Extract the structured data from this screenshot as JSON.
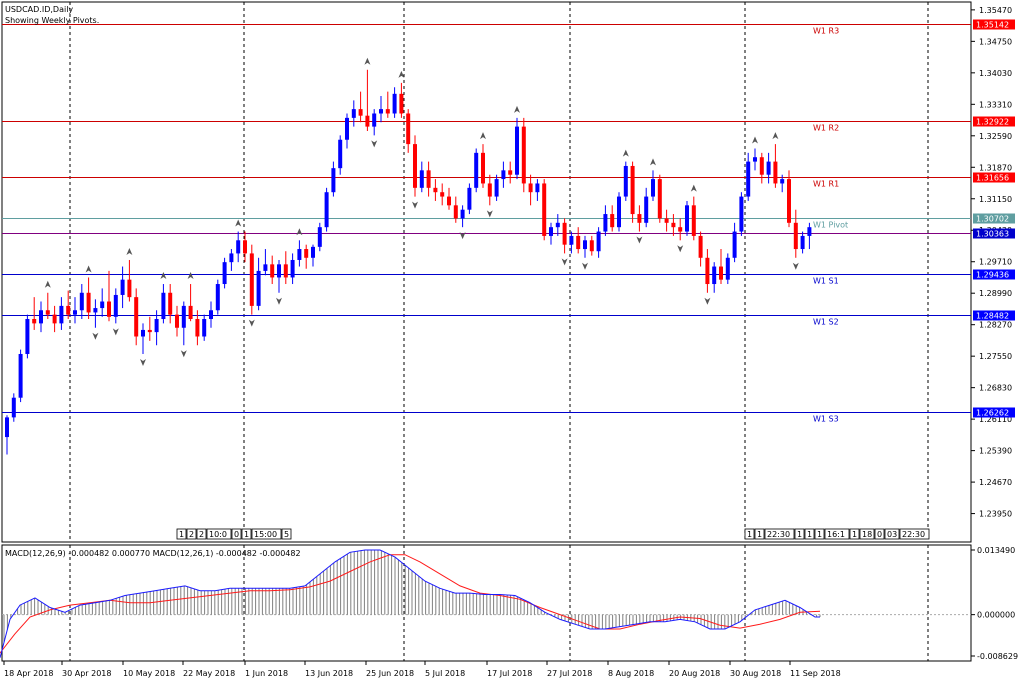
{
  "header": {
    "symbol_line": "USDCAD.ID,Daily",
    "subtitle": "Showing Weekly Pivots."
  },
  "macd": {
    "label": "MACD(12,26,9) -0.000482 0.000770 MACD(12,26,1) -0.000482 -0.000482",
    "ticks": [
      "0.013490",
      "0.000000",
      "-0.008629"
    ],
    "colors": {
      "macd_line": "#1a1aff",
      "signal_line": "#ff1a1a",
      "histogram": "#7f7f7f"
    }
  },
  "badges_left": [
    "1",
    "2",
    "2",
    "10:0",
    "0",
    "1",
    "15:00",
    "5"
  ],
  "badges_right": [
    "1",
    "1",
    "22:30",
    "1",
    "1",
    "1",
    "16:1",
    "1",
    "18",
    "0",
    "03",
    "22:30"
  ],
  "chart_data": {
    "type": "candlestick",
    "title": "USDCAD.ID,Daily",
    "subtitle": "Showing Weekly Pivots.",
    "ylim": [
      1.233,
      1.3565
    ],
    "y_ticks": [
      "1.35470",
      "1.34750",
      "1.34030",
      "1.33310",
      "1.32590",
      "1.31870",
      "1.31150",
      "1.30430",
      "1.29710",
      "1.28990",
      "1.28270",
      "1.27550",
      "1.26830",
      "1.26110",
      "1.25390",
      "1.24670",
      "1.23950"
    ],
    "x_ticks": [
      "18 Apr 2018",
      "30 Apr 2018",
      "10 May 2018",
      "22 May 2018",
      "1 Jun 2018",
      "13 Jun 2018",
      "25 Jun 2018",
      "5 Jul 2018",
      "17 Jul 2018",
      "27 Jul 2018",
      "8 Aug 2018",
      "20 Aug 2018",
      "30 Aug 2018",
      "11 Sep 2018"
    ],
    "colors": {
      "up": "#0000ff",
      "down": "#ff0000",
      "resistance": "#cc0000",
      "support": "#0000cc",
      "pivot": "#5f9ea0"
    },
    "pivots": [
      {
        "name": "W1 R3",
        "value": "1.35142",
        "type": "resistance"
      },
      {
        "name": "W1 R2",
        "value": "1.32922",
        "type": "resistance"
      },
      {
        "name": "W1 R1",
        "value": "1.31656",
        "type": "resistance"
      },
      {
        "name": "W1 Pivot",
        "value": "1.30702",
        "type": "pivot"
      },
      {
        "name": "",
        "value": "1.30363",
        "type": "current"
      },
      {
        "name": "W1 S1",
        "value": "1.29436",
        "type": "support"
      },
      {
        "name": "W1 S2",
        "value": "1.28482",
        "type": "support"
      },
      {
        "name": "W1 S3",
        "value": "1.26262",
        "type": "support"
      }
    ],
    "candles": [
      [
        1.257,
        1.262,
        1.253,
        1.2615
      ],
      [
        1.2615,
        1.267,
        1.2605,
        1.266
      ],
      [
        1.266,
        1.277,
        1.265,
        1.276
      ],
      [
        1.276,
        1.285,
        1.275,
        1.284
      ],
      [
        1.284,
        1.289,
        1.2815,
        1.283
      ],
      [
        1.283,
        1.288,
        1.281,
        1.286
      ],
      [
        1.286,
        1.29,
        1.284,
        1.285
      ],
      [
        1.285,
        1.287,
        1.281,
        1.283
      ],
      [
        1.283,
        1.289,
        1.2815,
        1.287
      ],
      [
        1.287,
        1.2905,
        1.284,
        1.285
      ],
      [
        1.285,
        1.289,
        1.283,
        1.286
      ],
      [
        1.286,
        1.292,
        1.284,
        1.29
      ],
      [
        1.29,
        1.2935,
        1.284,
        1.2855
      ],
      [
        1.2855,
        1.2885,
        1.282,
        1.2865
      ],
      [
        1.2865,
        1.291,
        1.2845,
        1.288
      ],
      [
        1.288,
        1.295,
        1.2835,
        1.2845
      ],
      [
        1.2845,
        1.291,
        1.283,
        1.2895
      ],
      [
        1.2895,
        1.296,
        1.2865,
        1.293
      ],
      [
        1.293,
        1.2975,
        1.288,
        1.289
      ],
      [
        1.289,
        1.291,
        1.278,
        1.28
      ],
      [
        1.28,
        1.283,
        1.276,
        1.2815
      ],
      [
        1.2815,
        1.2845,
        1.279,
        1.281
      ],
      [
        1.281,
        1.286,
        1.278,
        1.284
      ],
      [
        1.284,
        1.292,
        1.283,
        1.29
      ],
      [
        1.29,
        1.292,
        1.283,
        1.285
      ],
      [
        1.285,
        1.287,
        1.28,
        1.282
      ],
      [
        1.282,
        1.288,
        1.278,
        1.287
      ],
      [
        1.287,
        1.292,
        1.2835,
        1.284
      ],
      [
        1.284,
        1.286,
        1.278,
        1.28
      ],
      [
        1.28,
        1.285,
        1.279,
        1.284
      ],
      [
        1.284,
        1.288,
        1.282,
        1.286
      ],
      [
        1.286,
        1.293,
        1.285,
        1.292
      ],
      [
        1.292,
        1.298,
        1.291,
        1.297
      ],
      [
        1.297,
        1.3,
        1.295,
        1.299
      ],
      [
        1.299,
        1.304,
        1.297,
        1.302
      ],
      [
        1.302,
        1.304,
        1.297,
        1.299
      ],
      [
        1.299,
        1.301,
        1.285,
        1.287
      ],
      [
        1.287,
        1.298,
        1.286,
        1.295
      ],
      [
        1.295,
        1.3,
        1.294,
        1.2965
      ],
      [
        1.2965,
        1.2985,
        1.292,
        1.2935
      ],
      [
        1.2935,
        1.2975,
        1.29,
        1.2965
      ],
      [
        1.2965,
        1.2995,
        1.292,
        1.2935
      ],
      [
        1.2935,
        1.299,
        1.292,
        1.2975
      ],
      [
        1.2975,
        1.302,
        1.296,
        1.3
      ],
      [
        1.3,
        1.301,
        1.2955,
        1.298
      ],
      [
        1.298,
        1.301,
        1.296,
        1.3005
      ],
      [
        1.3005,
        1.306,
        1.2995,
        1.305
      ],
      [
        1.305,
        1.314,
        1.304,
        1.313
      ],
      [
        1.313,
        1.32,
        1.312,
        1.3185
      ],
      [
        1.3185,
        1.326,
        1.317,
        1.325
      ],
      [
        1.325,
        1.331,
        1.323,
        1.33
      ],
      [
        1.33,
        1.334,
        1.328,
        1.332
      ],
      [
        1.332,
        1.336,
        1.329,
        1.3305
      ],
      [
        1.3305,
        1.341,
        1.327,
        1.328
      ],
      [
        1.328,
        1.332,
        1.326,
        1.331
      ],
      [
        1.331,
        1.335,
        1.329,
        1.332
      ],
      [
        1.332,
        1.336,
        1.33,
        1.331
      ],
      [
        1.331,
        1.337,
        1.33,
        1.3355
      ],
      [
        1.3355,
        1.338,
        1.33,
        1.331
      ],
      [
        1.331,
        1.332,
        1.322,
        1.324
      ],
      [
        1.324,
        1.326,
        1.312,
        1.314
      ],
      [
        1.314,
        1.32,
        1.313,
        1.318
      ],
      [
        1.318,
        1.32,
        1.312,
        1.314
      ],
      [
        1.314,
        1.316,
        1.311,
        1.313
      ],
      [
        1.313,
        1.315,
        1.31,
        1.312
      ],
      [
        1.312,
        1.314,
        1.309,
        1.31
      ],
      [
        1.31,
        1.312,
        1.306,
        1.307
      ],
      [
        1.307,
        1.31,
        1.305,
        1.309
      ],
      [
        1.309,
        1.315,
        1.308,
        1.314
      ],
      [
        1.314,
        1.323,
        1.313,
        1.322
      ],
      [
        1.322,
        1.324,
        1.314,
        1.315
      ],
      [
        1.315,
        1.317,
        1.31,
        1.312
      ],
      [
        1.312,
        1.317,
        1.311,
        1.316
      ],
      [
        1.316,
        1.32,
        1.314,
        1.318
      ],
      [
        1.318,
        1.32,
        1.315,
        1.317
      ],
      [
        1.317,
        1.33,
        1.316,
        1.328
      ],
      [
        1.328,
        1.33,
        1.313,
        1.315
      ],
      [
        1.315,
        1.317,
        1.31,
        1.313
      ],
      [
        1.313,
        1.316,
        1.311,
        1.315
      ],
      [
        1.315,
        1.316,
        1.302,
        1.303
      ],
      [
        1.303,
        1.306,
        1.301,
        1.305
      ],
      [
        1.305,
        1.308,
        1.303,
        1.306
      ],
      [
        1.306,
        1.307,
        1.299,
        1.301
      ],
      [
        1.301,
        1.304,
        1.299,
        1.303
      ],
      [
        1.303,
        1.305,
        1.299,
        1.3
      ],
      [
        1.3,
        1.303,
        1.298,
        1.302
      ],
      [
        1.302,
        1.303,
        1.2985,
        1.2995
      ],
      [
        1.2995,
        1.305,
        1.298,
        1.304
      ],
      [
        1.304,
        1.31,
        1.303,
        1.308
      ],
      [
        1.308,
        1.31,
        1.304,
        1.305
      ],
      [
        1.305,
        1.313,
        1.304,
        1.312
      ],
      [
        1.312,
        1.32,
        1.311,
        1.319
      ],
      [
        1.319,
        1.32,
        1.306,
        1.308
      ],
      [
        1.308,
        1.31,
        1.304,
        1.306
      ],
      [
        1.306,
        1.314,
        1.305,
        1.312
      ],
      [
        1.312,
        1.318,
        1.311,
        1.316
      ],
      [
        1.316,
        1.317,
        1.306,
        1.307
      ],
      [
        1.307,
        1.309,
        1.304,
        1.306
      ],
      [
        1.306,
        1.308,
        1.303,
        1.305
      ],
      [
        1.305,
        1.307,
        1.302,
        1.304
      ],
      [
        1.304,
        1.311,
        1.303,
        1.31
      ],
      [
        1.31,
        1.312,
        1.302,
        1.303
      ],
      [
        1.303,
        1.304,
        1.296,
        1.298
      ],
      [
        1.298,
        1.3,
        1.29,
        1.292
      ],
      [
        1.292,
        1.297,
        1.29,
        1.296
      ],
      [
        1.296,
        1.3,
        1.292,
        1.293
      ],
      [
        1.293,
        1.299,
        1.292,
        1.298
      ],
      [
        1.298,
        1.306,
        1.297,
        1.304
      ],
      [
        1.304,
        1.313,
        1.303,
        1.312
      ],
      [
        1.312,
        1.322,
        1.311,
        1.32
      ],
      [
        1.32,
        1.323,
        1.318,
        1.321
      ],
      [
        1.321,
        1.322,
        1.315,
        1.317
      ],
      [
        1.317,
        1.322,
        1.315,
        1.32
      ],
      [
        1.32,
        1.324,
        1.314,
        1.315
      ],
      [
        1.315,
        1.317,
        1.313,
        1.316
      ],
      [
        1.316,
        1.318,
        1.305,
        1.306
      ],
      [
        1.306,
        1.309,
        1.298,
        1.3
      ],
      [
        1.3,
        1.304,
        1.299,
        1.303
      ],
      [
        1.303,
        1.306,
        1.3,
        1.305
      ]
    ],
    "macd_series": {
      "type": "line",
      "ylim": [
        -0.008629,
        0.01349
      ],
      "macd_points": [
        [
          0,
          -0.009
        ],
        [
          5,
          -0.005
        ],
        [
          10,
          -0.001
        ],
        [
          20,
          0.002
        ],
        [
          35,
          0.0035
        ],
        [
          50,
          0.0015
        ],
        [
          65,
          0.0005
        ],
        [
          80,
          0.002
        ],
        [
          95,
          0.0025
        ],
        [
          110,
          0.003
        ],
        [
          125,
          0.004
        ],
        [
          140,
          0.0045
        ],
        [
          155,
          0.005
        ],
        [
          170,
          0.0055
        ],
        [
          185,
          0.006
        ],
        [
          200,
          0.005
        ],
        [
          215,
          0.005
        ],
        [
          230,
          0.0055
        ],
        [
          245,
          0.0055
        ],
        [
          260,
          0.0055
        ],
        [
          275,
          0.0055
        ],
        [
          290,
          0.0055
        ],
        [
          305,
          0.006
        ],
        [
          320,
          0.0085
        ],
        [
          335,
          0.011
        ],
        [
          350,
          0.013
        ],
        [
          365,
          0.0135
        ],
        [
          380,
          0.0135
        ],
        [
          395,
          0.012
        ],
        [
          410,
          0.0095
        ],
        [
          425,
          0.007
        ],
        [
          440,
          0.0055
        ],
        [
          455,
          0.0045
        ],
        [
          470,
          0.0045
        ],
        [
          485,
          0.0042
        ],
        [
          500,
          0.0042
        ],
        [
          515,
          0.004
        ],
        [
          530,
          0.0025
        ],
        [
          545,
          0.0005
        ],
        [
          560,
          -0.001
        ],
        [
          575,
          -0.002
        ],
        [
          590,
          -0.003
        ],
        [
          605,
          -0.003
        ],
        [
          620,
          -0.0025
        ],
        [
          635,
          -0.002
        ],
        [
          650,
          -0.0015
        ],
        [
          665,
          -0.0015
        ],
        [
          680,
          -0.001
        ],
        [
          695,
          -0.0015
        ],
        [
          710,
          -0.003
        ],
        [
          725,
          -0.003
        ],
        [
          740,
          -0.0015
        ],
        [
          755,
          0.001
        ],
        [
          770,
          0.002
        ],
        [
          785,
          0.003
        ],
        [
          800,
          0.0015
        ],
        [
          815,
          -0.0005
        ],
        [
          820,
          -0.0005
        ]
      ],
      "signal_points": [
        [
          0,
          -0.008
        ],
        [
          15,
          -0.004
        ],
        [
          30,
          -0.0005
        ],
        [
          50,
          0.001
        ],
        [
          70,
          0.002
        ],
        [
          90,
          0.0025
        ],
        [
          110,
          0.003
        ],
        [
          130,
          0.0025
        ],
        [
          150,
          0.0025
        ],
        [
          170,
          0.003
        ],
        [
          190,
          0.0035
        ],
        [
          210,
          0.004
        ],
        [
          230,
          0.0045
        ],
        [
          250,
          0.005
        ],
        [
          270,
          0.005
        ],
        [
          290,
          0.0052
        ],
        [
          310,
          0.0058
        ],
        [
          330,
          0.007
        ],
        [
          350,
          0.009
        ],
        [
          370,
          0.011
        ],
        [
          390,
          0.0125
        ],
        [
          405,
          0.0125
        ],
        [
          420,
          0.011
        ],
        [
          440,
          0.0085
        ],
        [
          460,
          0.006
        ],
        [
          480,
          0.0045
        ],
        [
          500,
          0.004
        ],
        [
          520,
          0.0032
        ],
        [
          540,
          0.0015
        ],
        [
          560,
          0.0
        ],
        [
          580,
          -0.0015
        ],
        [
          600,
          -0.003
        ],
        [
          620,
          -0.003
        ],
        [
          640,
          -0.002
        ],
        [
          660,
          -0.0012
        ],
        [
          680,
          -0.0005
        ],
        [
          700,
          -0.0008
        ],
        [
          720,
          -0.0022
        ],
        [
          740,
          -0.0028
        ],
        [
          760,
          -0.002
        ],
        [
          780,
          -0.001
        ],
        [
          800,
          0.0005
        ],
        [
          820,
          0.0007
        ]
      ]
    }
  }
}
